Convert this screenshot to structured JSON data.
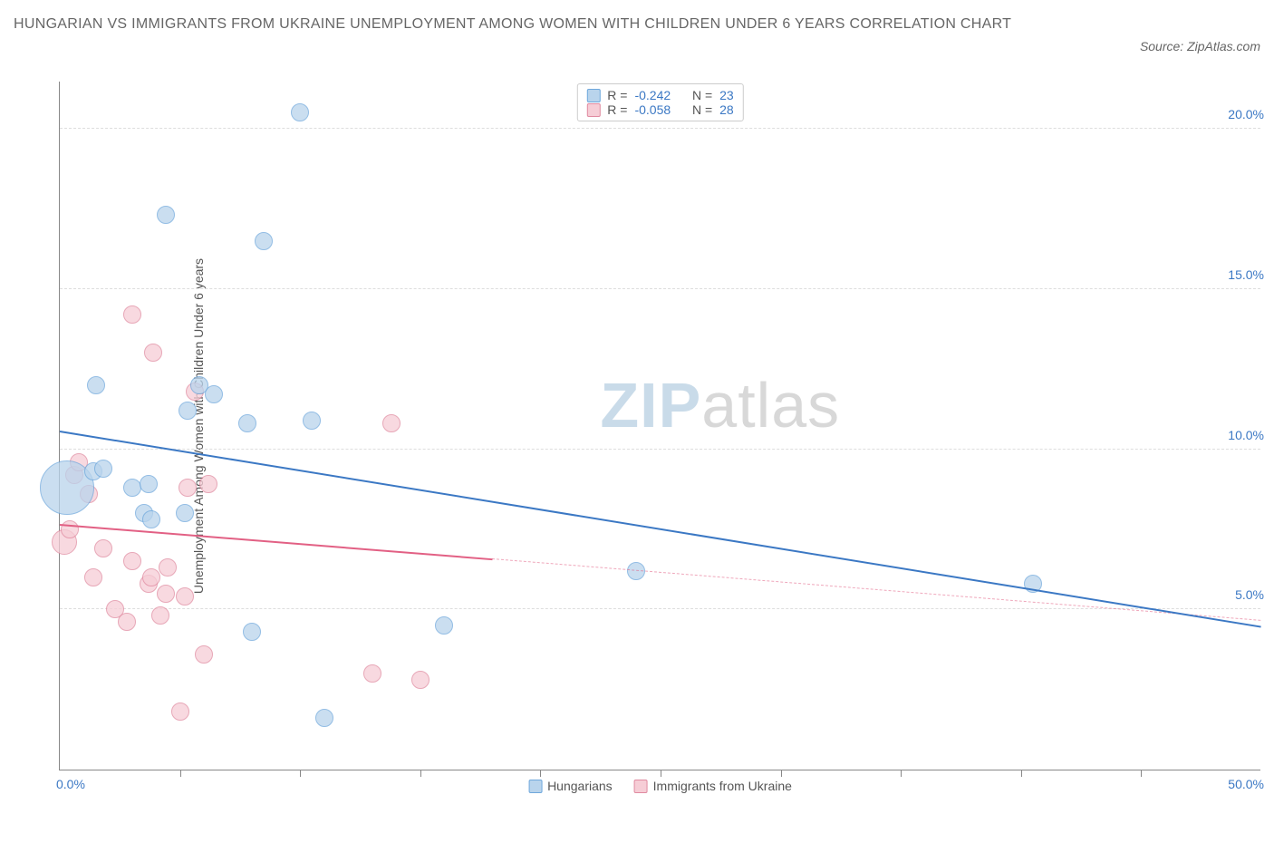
{
  "title": "HUNGARIAN VS IMMIGRANTS FROM UKRAINE UNEMPLOYMENT AMONG WOMEN WITH CHILDREN UNDER 6 YEARS CORRELATION CHART",
  "source": "Source: ZipAtlas.com",
  "y_axis_label": "Unemployment Among Women with Children Under 6 years",
  "watermark": {
    "left": "ZIP",
    "right": "atlas",
    "color_left": "#c9dbe9",
    "color_right": "#d8d8d8"
  },
  "colors": {
    "blue_fill": "#b9d4ec",
    "blue_stroke": "#6fa8dc",
    "blue_line": "#3b78c4",
    "pink_fill": "#f6cdd6",
    "pink_stroke": "#e08aa0",
    "pink_line": "#e26084",
    "x_text": "#3b78c4",
    "y_text": "#3b78c4",
    "stat_text": "#3b78c4",
    "grid": "#dddddd",
    "axis": "#888888",
    "label": "#555555"
  },
  "axes": {
    "xmin": 0,
    "xmax": 50,
    "ymin": 0,
    "ymax": 21.5,
    "x_ticks": [
      5,
      10,
      15,
      20,
      25,
      30,
      35,
      40,
      45
    ],
    "y_gridlines": [
      5,
      10,
      15,
      20
    ],
    "y_tick_labels": [
      {
        "v": 5,
        "t": "5.0%"
      },
      {
        "v": 10,
        "t": "10.0%"
      },
      {
        "v": 15,
        "t": "15.0%"
      },
      {
        "v": 20,
        "t": "20.0%"
      }
    ],
    "x_left_label": "0.0%",
    "x_right_label": "50.0%"
  },
  "series": [
    {
      "id": "hungarians",
      "label": "Hungarians",
      "R": "-0.242",
      "N": "23",
      "color_fill": "#b9d4ec",
      "color_stroke": "#6fa8dc",
      "trend_color": "#3b78c4",
      "trend": {
        "x1": 0,
        "y1": 10.6,
        "x2": 50,
        "y2": 4.5,
        "solid_until_x": 50
      },
      "points": [
        {
          "x": 0.3,
          "y": 8.8,
          "r": 30
        },
        {
          "x": 1.4,
          "y": 9.3,
          "r": 10
        },
        {
          "x": 1.5,
          "y": 12.0,
          "r": 10
        },
        {
          "x": 1.8,
          "y": 9.4,
          "r": 10
        },
        {
          "x": 3.0,
          "y": 8.8,
          "r": 10
        },
        {
          "x": 3.5,
          "y": 8.0,
          "r": 10
        },
        {
          "x": 3.7,
          "y": 8.9,
          "r": 10
        },
        {
          "x": 3.8,
          "y": 7.8,
          "r": 10
        },
        {
          "x": 4.4,
          "y": 17.3,
          "r": 10
        },
        {
          "x": 5.2,
          "y": 8.0,
          "r": 10
        },
        {
          "x": 5.3,
          "y": 11.2,
          "r": 10
        },
        {
          "x": 5.8,
          "y": 12.0,
          "r": 10
        },
        {
          "x": 6.4,
          "y": 11.7,
          "r": 10
        },
        {
          "x": 7.8,
          "y": 10.8,
          "r": 10
        },
        {
          "x": 8.0,
          "y": 4.3,
          "r": 10
        },
        {
          "x": 8.5,
          "y": 16.5,
          "r": 10
        },
        {
          "x": 10.0,
          "y": 20.5,
          "r": 10
        },
        {
          "x": 10.5,
          "y": 10.9,
          "r": 10
        },
        {
          "x": 11.0,
          "y": 1.6,
          "r": 10
        },
        {
          "x": 16.0,
          "y": 4.5,
          "r": 10
        },
        {
          "x": 24.0,
          "y": 6.2,
          "r": 10
        },
        {
          "x": 40.5,
          "y": 5.8,
          "r": 10
        }
      ]
    },
    {
      "id": "ukraine",
      "label": "Immigrants from Ukraine",
      "R": "-0.058",
      "N": "28",
      "color_fill": "#f6cdd6",
      "color_stroke": "#e08aa0",
      "trend_color": "#e26084",
      "trend": {
        "x1": 0,
        "y1": 7.7,
        "x2": 50,
        "y2": 4.7,
        "solid_until_x": 18
      },
      "points": [
        {
          "x": 0.2,
          "y": 7.1,
          "r": 14
        },
        {
          "x": 0.4,
          "y": 7.5,
          "r": 10
        },
        {
          "x": 0.6,
          "y": 9.2,
          "r": 10
        },
        {
          "x": 0.8,
          "y": 9.6,
          "r": 10
        },
        {
          "x": 1.2,
          "y": 8.6,
          "r": 10
        },
        {
          "x": 1.4,
          "y": 6.0,
          "r": 10
        },
        {
          "x": 1.8,
          "y": 6.9,
          "r": 10
        },
        {
          "x": 2.3,
          "y": 5.0,
          "r": 10
        },
        {
          "x": 2.8,
          "y": 4.6,
          "r": 10
        },
        {
          "x": 3.0,
          "y": 6.5,
          "r": 10
        },
        {
          "x": 3.0,
          "y": 14.2,
          "r": 10
        },
        {
          "x": 3.7,
          "y": 5.8,
          "r": 10
        },
        {
          "x": 3.8,
          "y": 6.0,
          "r": 10
        },
        {
          "x": 3.9,
          "y": 13.0,
          "r": 10
        },
        {
          "x": 4.2,
          "y": 4.8,
          "r": 10
        },
        {
          "x": 4.4,
          "y": 5.5,
          "r": 10
        },
        {
          "x": 4.5,
          "y": 6.3,
          "r": 10
        },
        {
          "x": 5.0,
          "y": 1.8,
          "r": 10
        },
        {
          "x": 5.2,
          "y": 5.4,
          "r": 10
        },
        {
          "x": 5.3,
          "y": 8.8,
          "r": 10
        },
        {
          "x": 5.6,
          "y": 11.8,
          "r": 10
        },
        {
          "x": 6.0,
          "y": 3.6,
          "r": 10
        },
        {
          "x": 6.2,
          "y": 8.9,
          "r": 10
        },
        {
          "x": 13.0,
          "y": 3.0,
          "r": 10
        },
        {
          "x": 13.8,
          "y": 10.8,
          "r": 10
        },
        {
          "x": 15.0,
          "y": 2.8,
          "r": 10
        }
      ]
    }
  ],
  "legend_bottom": [
    {
      "label": "Hungarians",
      "fill": "#b9d4ec",
      "stroke": "#6fa8dc"
    },
    {
      "label": "Immigrants from Ukraine",
      "fill": "#f6cdd6",
      "stroke": "#e08aa0"
    }
  ],
  "top_legend_labels": {
    "R": "R =",
    "N": "N ="
  }
}
